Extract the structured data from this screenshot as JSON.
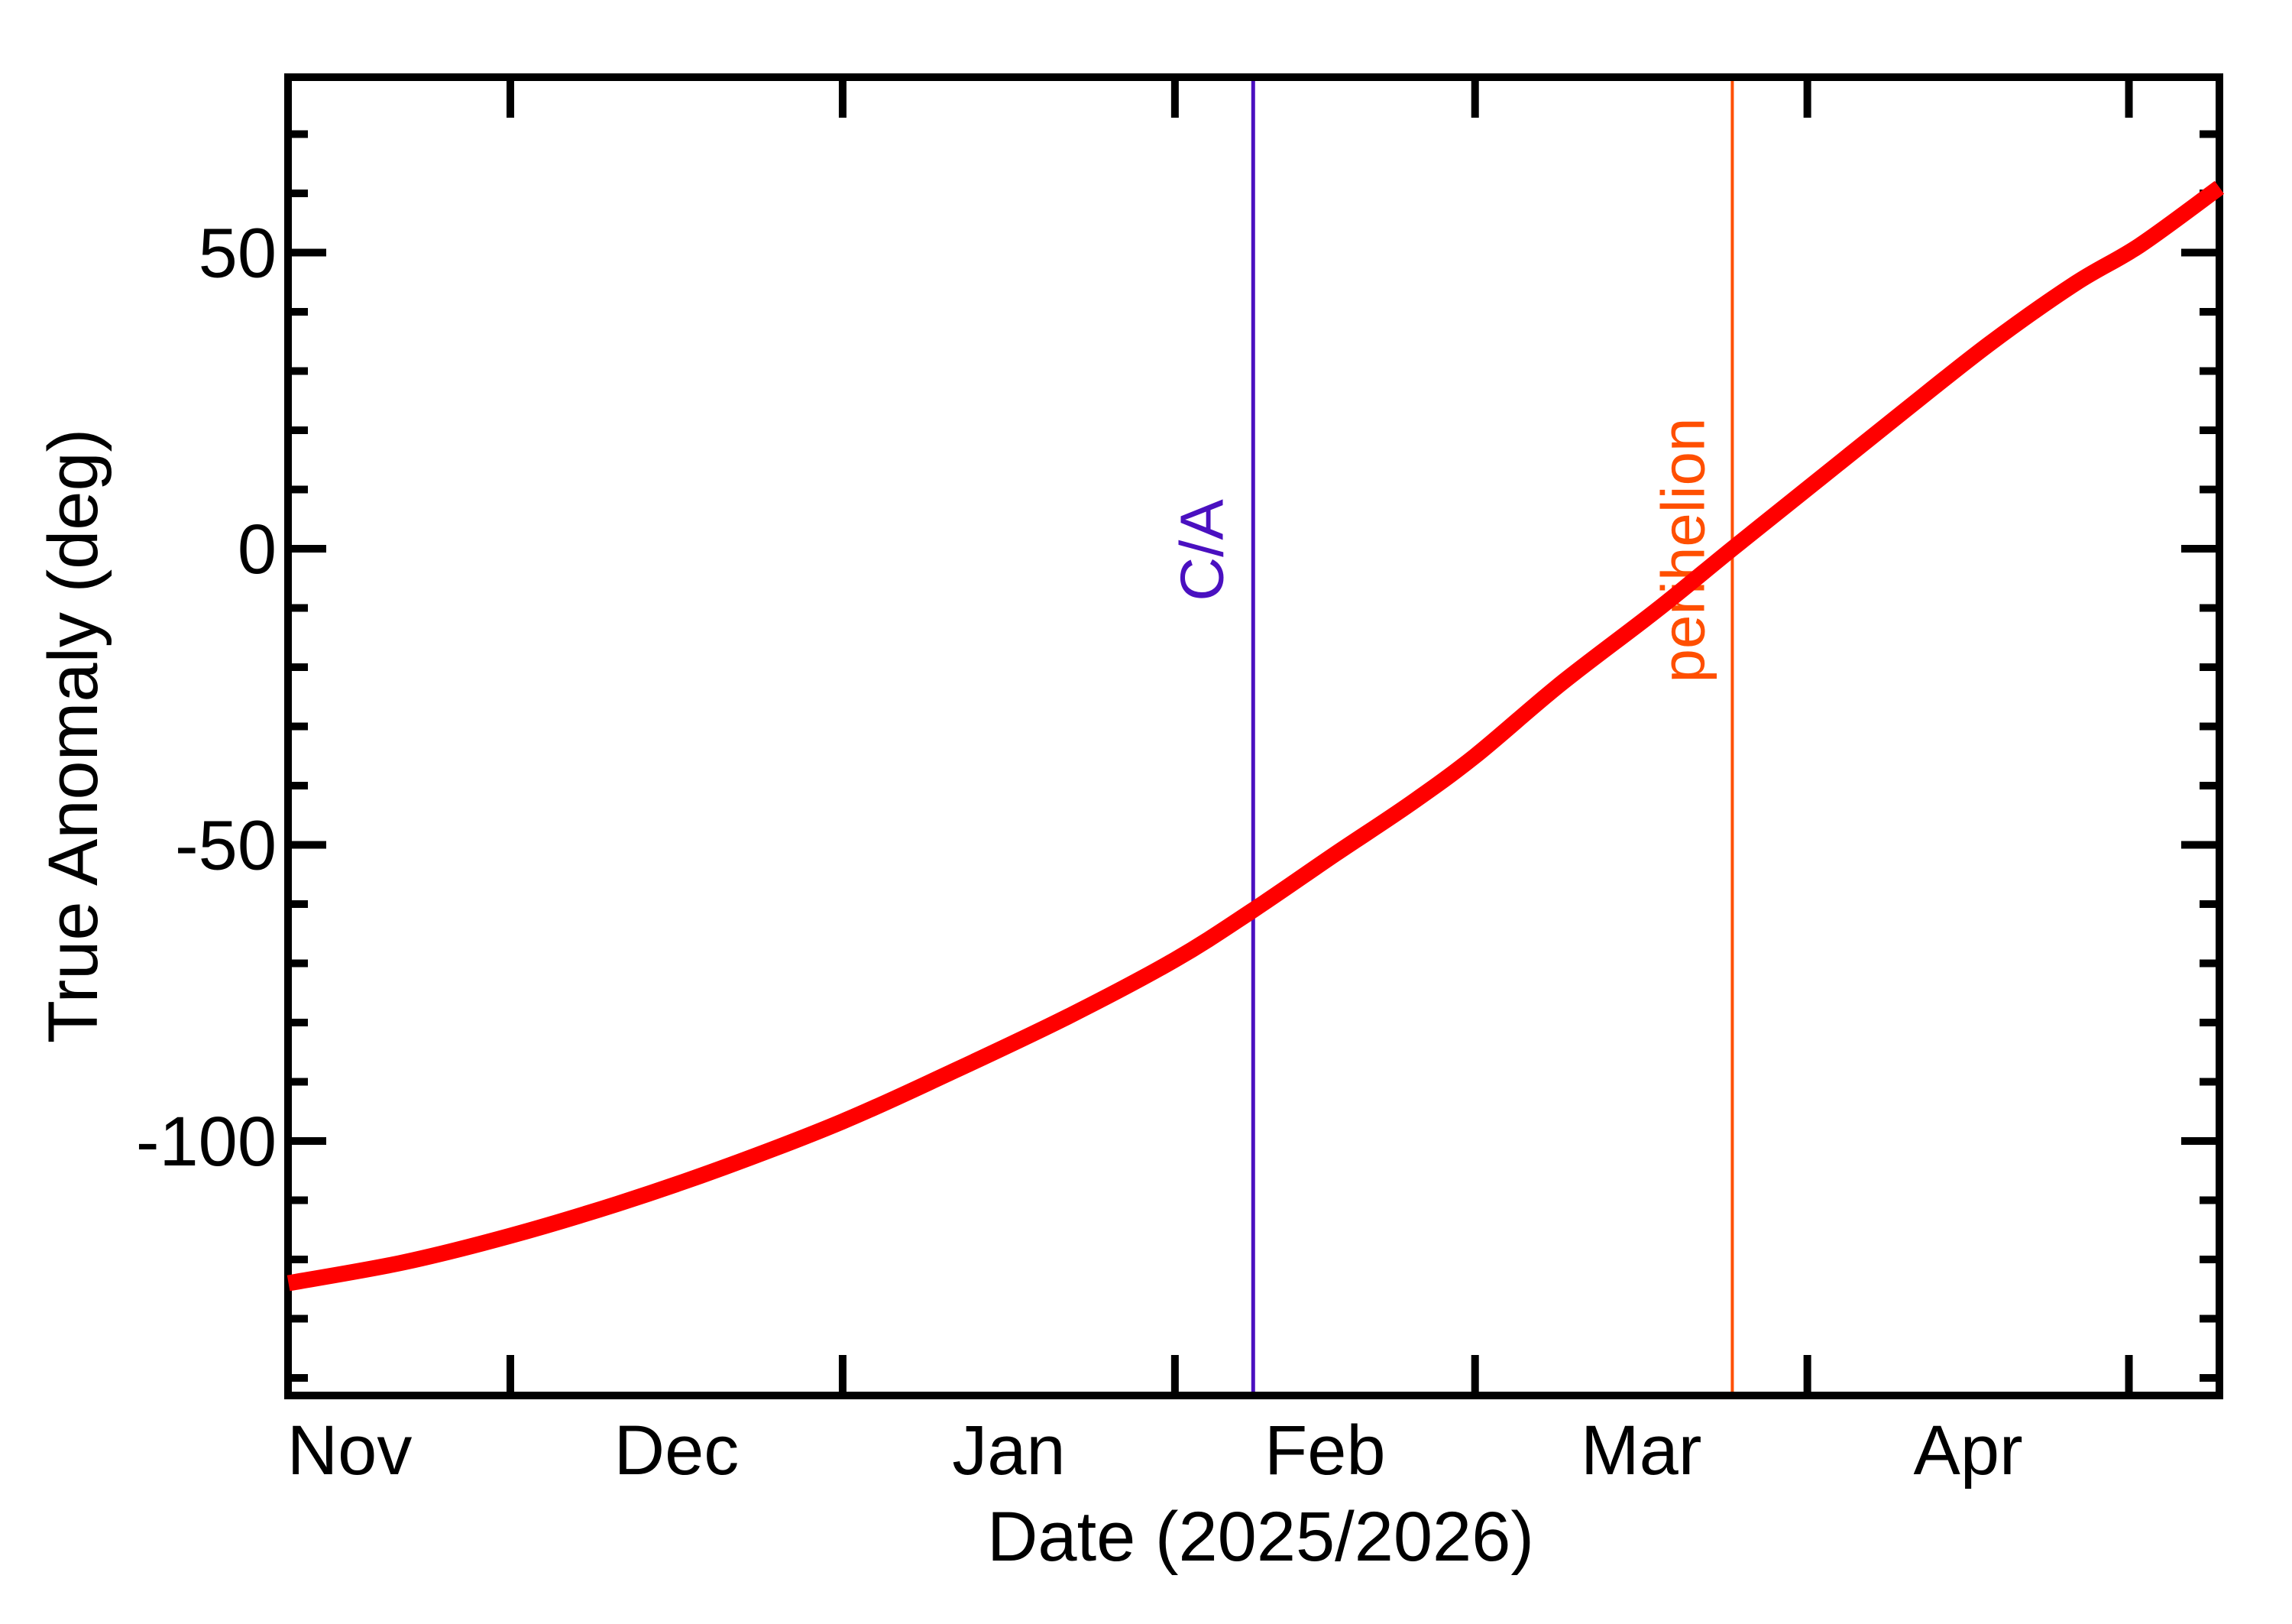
{
  "figure": {
    "xlabel": "Date (2025/2026)",
    "ylabel": "True Anomaly (deg)",
    "background": "#FFFFFF",
    "frame_color": "#000000",
    "curve_color": "#FF0000"
  },
  "x_axis": {
    "month_labels": [
      "Nov",
      "Dec",
      "Jan",
      "Feb",
      "Mar",
      "Apr"
    ],
    "month_label_t": [
      -15,
      15.5,
      46.5,
      76,
      105.5,
      136
    ],
    "boundary_tick_t": [
      0,
      31,
      62,
      90,
      121,
      151
    ]
  },
  "y_axis": {
    "tick_labels": [
      "50",
      "0",
      "-50",
      "-100"
    ],
    "major_ticks": [
      50,
      0,
      -50,
      -100
    ],
    "minor_ticks": [
      70,
      60,
      40,
      30,
      20,
      10,
      -10,
      -20,
      -30,
      -40,
      -60,
      -70,
      -80,
      -90,
      -110,
      -120,
      -130,
      -140
    ]
  },
  "events": [
    {
      "name": "close-approach",
      "label": "C/A",
      "color": "#4A10C0",
      "t": 69.3,
      "date": "2026-02-08"
    },
    {
      "name": "perihelion",
      "label": "perihelion",
      "color": "#FF4F00",
      "t": 114,
      "date": "2026-03-25"
    }
  ],
  "chart_data": {
    "type": "line",
    "title": "",
    "xlabel": "Date (2025/2026)",
    "ylabel": "True Anomaly (deg)",
    "x_unit": "days since 2025-12-01",
    "xlim_t": [
      -20.7,
      159.5
    ],
    "ylim": [
      -142.9,
      79.7
    ],
    "y_major_tick_step": 50,
    "y_minor_tick_step": 10,
    "grid": false,
    "legend": false,
    "annotations": [
      {
        "label": "C/A",
        "date": "2026-02-08",
        "t": 69.3,
        "color": "#4A10C0",
        "style": "vertical-line"
      },
      {
        "label": "perihelion",
        "date": "2026-03-25",
        "t": 114,
        "color": "#FF4F00",
        "style": "vertical-line"
      }
    ],
    "series": [
      {
        "name": "true-anomaly",
        "color": "#FF0000",
        "points": [
          {
            "date": "2025-11-10",
            "t": -20.7,
            "v": -124.0
          },
          {
            "date": "2025-11-21",
            "t": -10.0,
            "v": -120.5
          },
          {
            "date": "2025-12-01",
            "t": 0.0,
            "v": -116.0
          },
          {
            "date": "2025-12-11",
            "t": 10.0,
            "v": -110.6
          },
          {
            "date": "2025-12-21",
            "t": 20.0,
            "v": -104.4
          },
          {
            "date": "2026-01-01",
            "t": 31.0,
            "v": -96.7
          },
          {
            "date": "2026-01-11",
            "t": 41.0,
            "v": -88.5
          },
          {
            "date": "2026-01-22",
            "t": 52.0,
            "v": -79.0
          },
          {
            "date": "2026-02-01",
            "t": 62.0,
            "v": -69.4
          },
          {
            "date": "2026-02-08",
            "t": 69.3,
            "v": -61.0
          },
          {
            "date": "2026-02-16",
            "t": 77.0,
            "v": -51.5
          },
          {
            "date": "2026-02-23",
            "t": 84.0,
            "v": -43.0
          },
          {
            "date": "2026-03-01",
            "t": 90.0,
            "v": -35.0
          },
          {
            "date": "2026-03-09",
            "t": 98.0,
            "v": -22.8
          },
          {
            "date": "2026-03-18",
            "t": 107.0,
            "v": -10.3
          },
          {
            "date": "2026-03-25",
            "t": 114.0,
            "v": 0.0
          },
          {
            "date": "2026-04-02",
            "t": 122.0,
            "v": 11.6
          },
          {
            "date": "2026-04-10",
            "t": 130.0,
            "v": 23.2
          },
          {
            "date": "2026-04-18",
            "t": 138.0,
            "v": 34.6
          },
          {
            "date": "2026-04-26",
            "t": 146.0,
            "v": 44.8
          },
          {
            "date": "2026-05-02",
            "t": 152.0,
            "v": 51.2
          },
          {
            "date": "2026-05-09",
            "t": 159.5,
            "v": 61.0
          }
        ]
      }
    ]
  }
}
